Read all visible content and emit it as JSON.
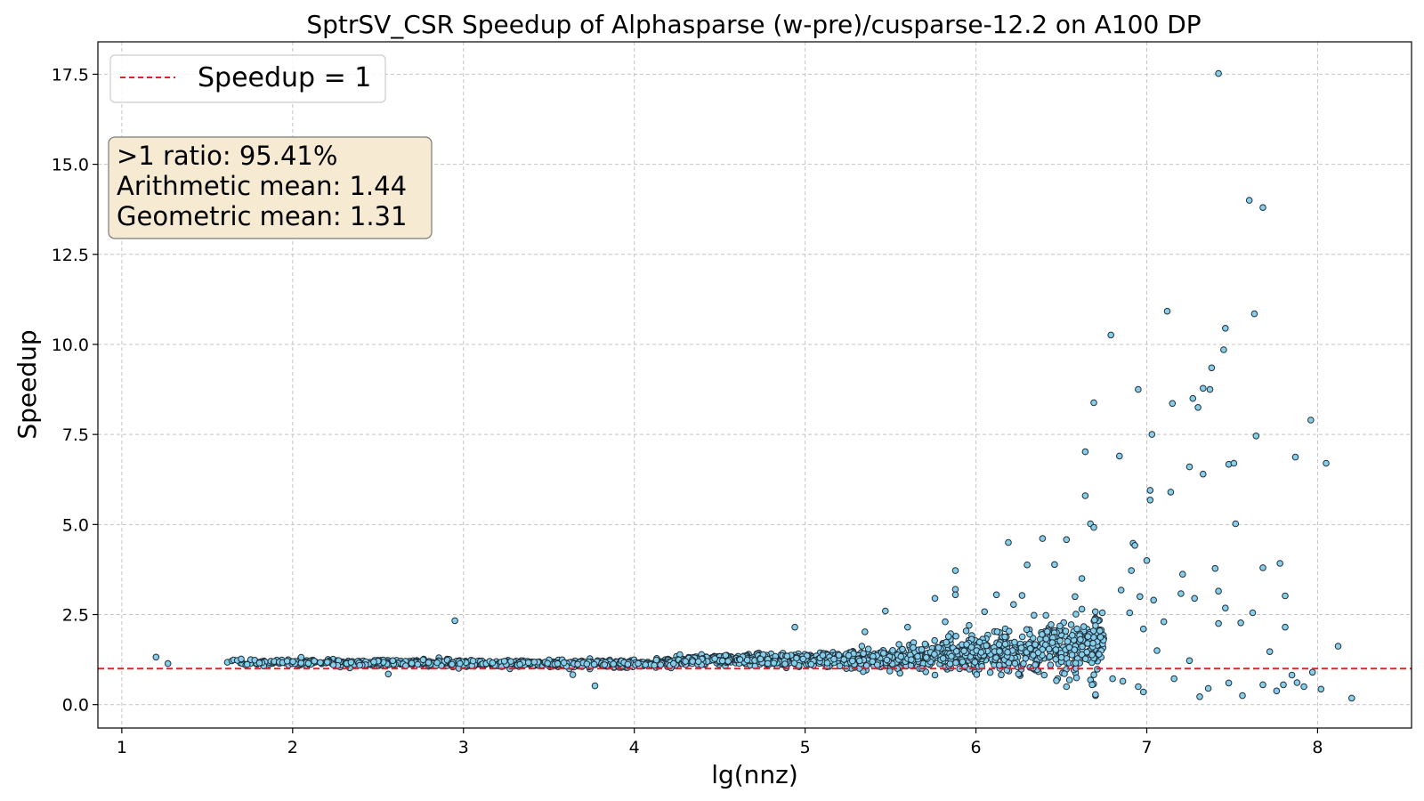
{
  "colors": {
    "point_fill": "#87CEEB",
    "point_stroke": "#1f2f3a",
    "reference_line": "#e8201f",
    "grid": "#c4c4c4",
    "stats_box_fill": "#f7ead3",
    "stats_box_stroke": "#7a7a7a",
    "legend_box_stroke": "#cccccc"
  },
  "legend": {
    "label": "Speedup = 1",
    "location": "top-left"
  },
  "stats": {
    "ratio_line": ">1 ratio: 95.41%",
    "arith_line": "Arithmetic mean: 1.44",
    "geo_line": "Geometric mean: 1.31"
  },
  "chart_data": {
    "type": "scatter",
    "title": "SptrSV_CSR Speedup of Alphasparse (w-pre)/cusparse-12.2 on A100 DP",
    "xlabel": "lg(nnz)",
    "ylabel": "Speedup",
    "xlim": [
      0.86,
      8.55
    ],
    "ylim": [
      -0.65,
      18.4
    ],
    "grid": true,
    "xticks": [
      1,
      2,
      3,
      4,
      5,
      6,
      7,
      8
    ],
    "xtick_labels": [
      "1",
      "2",
      "3",
      "4",
      "5",
      "6",
      "7",
      "8"
    ],
    "yticks": [
      0,
      2.5,
      5,
      7.5,
      10,
      12.5,
      15,
      17.5
    ],
    "ytick_labels": [
      "0.0",
      "2.5",
      "5.0",
      "7.5",
      "10.0",
      "12.5",
      "15.0",
      "17.5"
    ],
    "reference_line": {
      "y": 1,
      "style": "dashed",
      "label": "Speedup = 1"
    },
    "statistics": {
      "ratio_above_1_percent": 95.41,
      "arithmetic_mean": 1.44,
      "geometric_mean": 1.31
    },
    "outliers": [
      {
        "x": 1.2,
        "y": 1.32
      },
      {
        "x": 1.27,
        "y": 1.14
      },
      {
        "x": 2.95,
        "y": 2.33
      },
      {
        "x": 3.77,
        "y": 0.52
      },
      {
        "x": 3.64,
        "y": 0.83
      },
      {
        "x": 2.56,
        "y": 0.85
      },
      {
        "x": 4.94,
        "y": 2.15
      },
      {
        "x": 5.47,
        "y": 2.6
      },
      {
        "x": 5.88,
        "y": 3.72
      },
      {
        "x": 5.88,
        "y": 3.2
      },
      {
        "x": 5.88,
        "y": 3.05
      },
      {
        "x": 6.19,
        "y": 4.5
      },
      {
        "x": 6.3,
        "y": 3.88
      },
      {
        "x": 6.39,
        "y": 4.61
      },
      {
        "x": 6.46,
        "y": 3.89
      },
      {
        "x": 6.53,
        "y": 4.58
      },
      {
        "x": 6.53,
        "y": 0.5
      },
      {
        "x": 6.62,
        "y": 3.5
      },
      {
        "x": 6.64,
        "y": 5.8
      },
      {
        "x": 6.64,
        "y": 7.02
      },
      {
        "x": 6.67,
        "y": 5.02
      },
      {
        "x": 6.69,
        "y": 4.92
      },
      {
        "x": 6.69,
        "y": 8.38
      },
      {
        "x": 6.7,
        "y": 0.25
      },
      {
        "x": 6.7,
        "y": 0.28
      },
      {
        "x": 6.79,
        "y": 10.26
      },
      {
        "x": 6.84,
        "y": 6.9
      },
      {
        "x": 6.85,
        "y": 3.18
      },
      {
        "x": 6.91,
        "y": 3.72
      },
      {
        "x": 6.92,
        "y": 4.48
      },
      {
        "x": 6.93,
        "y": 4.42
      },
      {
        "x": 6.95,
        "y": 8.75
      },
      {
        "x": 6.96,
        "y": 3.0
      },
      {
        "x": 6.98,
        "y": 2.1
      },
      {
        "x": 7.0,
        "y": 4.0
      },
      {
        "x": 7.02,
        "y": 5.95
      },
      {
        "x": 7.02,
        "y": 5.68
      },
      {
        "x": 7.03,
        "y": 7.5
      },
      {
        "x": 7.04,
        "y": 2.9
      },
      {
        "x": 7.12,
        "y": 10.92
      },
      {
        "x": 7.14,
        "y": 5.9
      },
      {
        "x": 7.15,
        "y": 8.36
      },
      {
        "x": 7.21,
        "y": 3.62
      },
      {
        "x": 7.25,
        "y": 6.6
      },
      {
        "x": 7.27,
        "y": 8.5
      },
      {
        "x": 7.3,
        "y": 8.25
      },
      {
        "x": 7.33,
        "y": 8.78
      },
      {
        "x": 7.33,
        "y": 6.4
      },
      {
        "x": 7.37,
        "y": 8.75
      },
      {
        "x": 7.38,
        "y": 9.35
      },
      {
        "x": 7.42,
        "y": 17.52
      },
      {
        "x": 7.45,
        "y": 9.85
      },
      {
        "x": 7.46,
        "y": 10.45
      },
      {
        "x": 7.48,
        "y": 6.67
      },
      {
        "x": 7.51,
        "y": 6.7
      },
      {
        "x": 7.52,
        "y": 5.02
      },
      {
        "x": 7.6,
        "y": 14.0
      },
      {
        "x": 7.63,
        "y": 10.85
      },
      {
        "x": 7.64,
        "y": 7.46
      },
      {
        "x": 7.68,
        "y": 13.8
      },
      {
        "x": 7.68,
        "y": 3.8
      },
      {
        "x": 7.78,
        "y": 3.92
      },
      {
        "x": 7.81,
        "y": 3.02
      },
      {
        "x": 7.81,
        "y": 2.15
      },
      {
        "x": 7.87,
        "y": 6.87
      },
      {
        "x": 7.96,
        "y": 7.9
      },
      {
        "x": 8.05,
        "y": 6.7
      },
      {
        "x": 8.12,
        "y": 1.62
      },
      {
        "x": 8.2,
        "y": 0.18
      },
      {
        "x": 8.02,
        "y": 0.43
      },
      {
        "x": 7.97,
        "y": 0.9
      },
      {
        "x": 7.92,
        "y": 0.5
      },
      {
        "x": 7.88,
        "y": 0.61
      },
      {
        "x": 7.85,
        "y": 0.82
      },
      {
        "x": 7.8,
        "y": 0.55
      },
      {
        "x": 7.76,
        "y": 0.38
      },
      {
        "x": 7.72,
        "y": 1.47
      },
      {
        "x": 7.68,
        "y": 0.55
      },
      {
        "x": 7.62,
        "y": 2.55
      },
      {
        "x": 7.56,
        "y": 0.25
      },
      {
        "x": 7.55,
        "y": 2.27
      },
      {
        "x": 7.48,
        "y": 0.6
      },
      {
        "x": 7.46,
        "y": 2.68
      },
      {
        "x": 7.42,
        "y": 3.15
      },
      {
        "x": 7.42,
        "y": 2.25
      },
      {
        "x": 7.4,
        "y": 3.78
      },
      {
        "x": 7.36,
        "y": 0.45
      },
      {
        "x": 7.31,
        "y": 0.22
      },
      {
        "x": 7.28,
        "y": 2.95
      },
      {
        "x": 7.25,
        "y": 1.22
      },
      {
        "x": 7.2,
        "y": 3.08
      },
      {
        "x": 7.16,
        "y": 0.72
      },
      {
        "x": 7.1,
        "y": 2.3
      },
      {
        "x": 7.06,
        "y": 1.5
      },
      {
        "x": 6.98,
        "y": 0.35
      },
      {
        "x": 6.95,
        "y": 0.5
      },
      {
        "x": 6.9,
        "y": 2.55
      },
      {
        "x": 6.86,
        "y": 0.65
      },
      {
        "x": 6.8,
        "y": 0.72
      },
      {
        "x": 6.74,
        "y": 2.55
      },
      {
        "x": 6.68,
        "y": 0.55
      },
      {
        "x": 6.62,
        "y": 2.65
      },
      {
        "x": 6.58,
        "y": 3.0
      },
      {
        "x": 6.44,
        "y": 2.22
      },
      {
        "x": 6.4,
        "y": 0.82
      },
      {
        "x": 6.34,
        "y": 2.48
      },
      {
        "x": 6.27,
        "y": 3.03
      },
      {
        "x": 6.22,
        "y": 2.78
      },
      {
        "x": 6.12,
        "y": 3.05
      },
      {
        "x": 6.05,
        "y": 2.58
      },
      {
        "x": 5.96,
        "y": 2.2
      },
      {
        "x": 5.82,
        "y": 2.3
      },
      {
        "x": 5.76,
        "y": 2.95
      },
      {
        "x": 5.76,
        "y": 0.82
      },
      {
        "x": 5.6,
        "y": 2.15
      },
      {
        "x": 5.35,
        "y": 2.02
      }
    ],
    "dense_band": {
      "description": "Approximately 2,000 matrices clustered tightly around speedup 1.0-1.4 for lg(nnz) from about 1.6 to 6.7, widening in spread above lg(nnz) 5.5",
      "x_range": [
        1.6,
        6.75
      ],
      "center_segments": [
        {
          "x": 1.6,
          "y": 1.18
        },
        {
          "x": 3.0,
          "y": 1.15
        },
        {
          "x": 4.0,
          "y": 1.13
        },
        {
          "x": 4.5,
          "y": 1.25
        },
        {
          "x": 5.0,
          "y": 1.25
        },
        {
          "x": 5.5,
          "y": 1.3
        },
        {
          "x": 6.0,
          "y": 1.38
        },
        {
          "x": 6.5,
          "y": 1.55
        },
        {
          "x": 6.75,
          "y": 1.7
        }
      ],
      "spread_segments": [
        {
          "x": 1.6,
          "s": 0.07
        },
        {
          "x": 3.0,
          "s": 0.08
        },
        {
          "x": 4.0,
          "s": 0.09
        },
        {
          "x": 5.0,
          "s": 0.16
        },
        {
          "x": 5.5,
          "s": 0.25
        },
        {
          "x": 6.0,
          "s": 0.45
        },
        {
          "x": 6.5,
          "s": 0.65
        },
        {
          "x": 6.75,
          "s": 0.75
        }
      ],
      "point_count": 2000
    }
  }
}
